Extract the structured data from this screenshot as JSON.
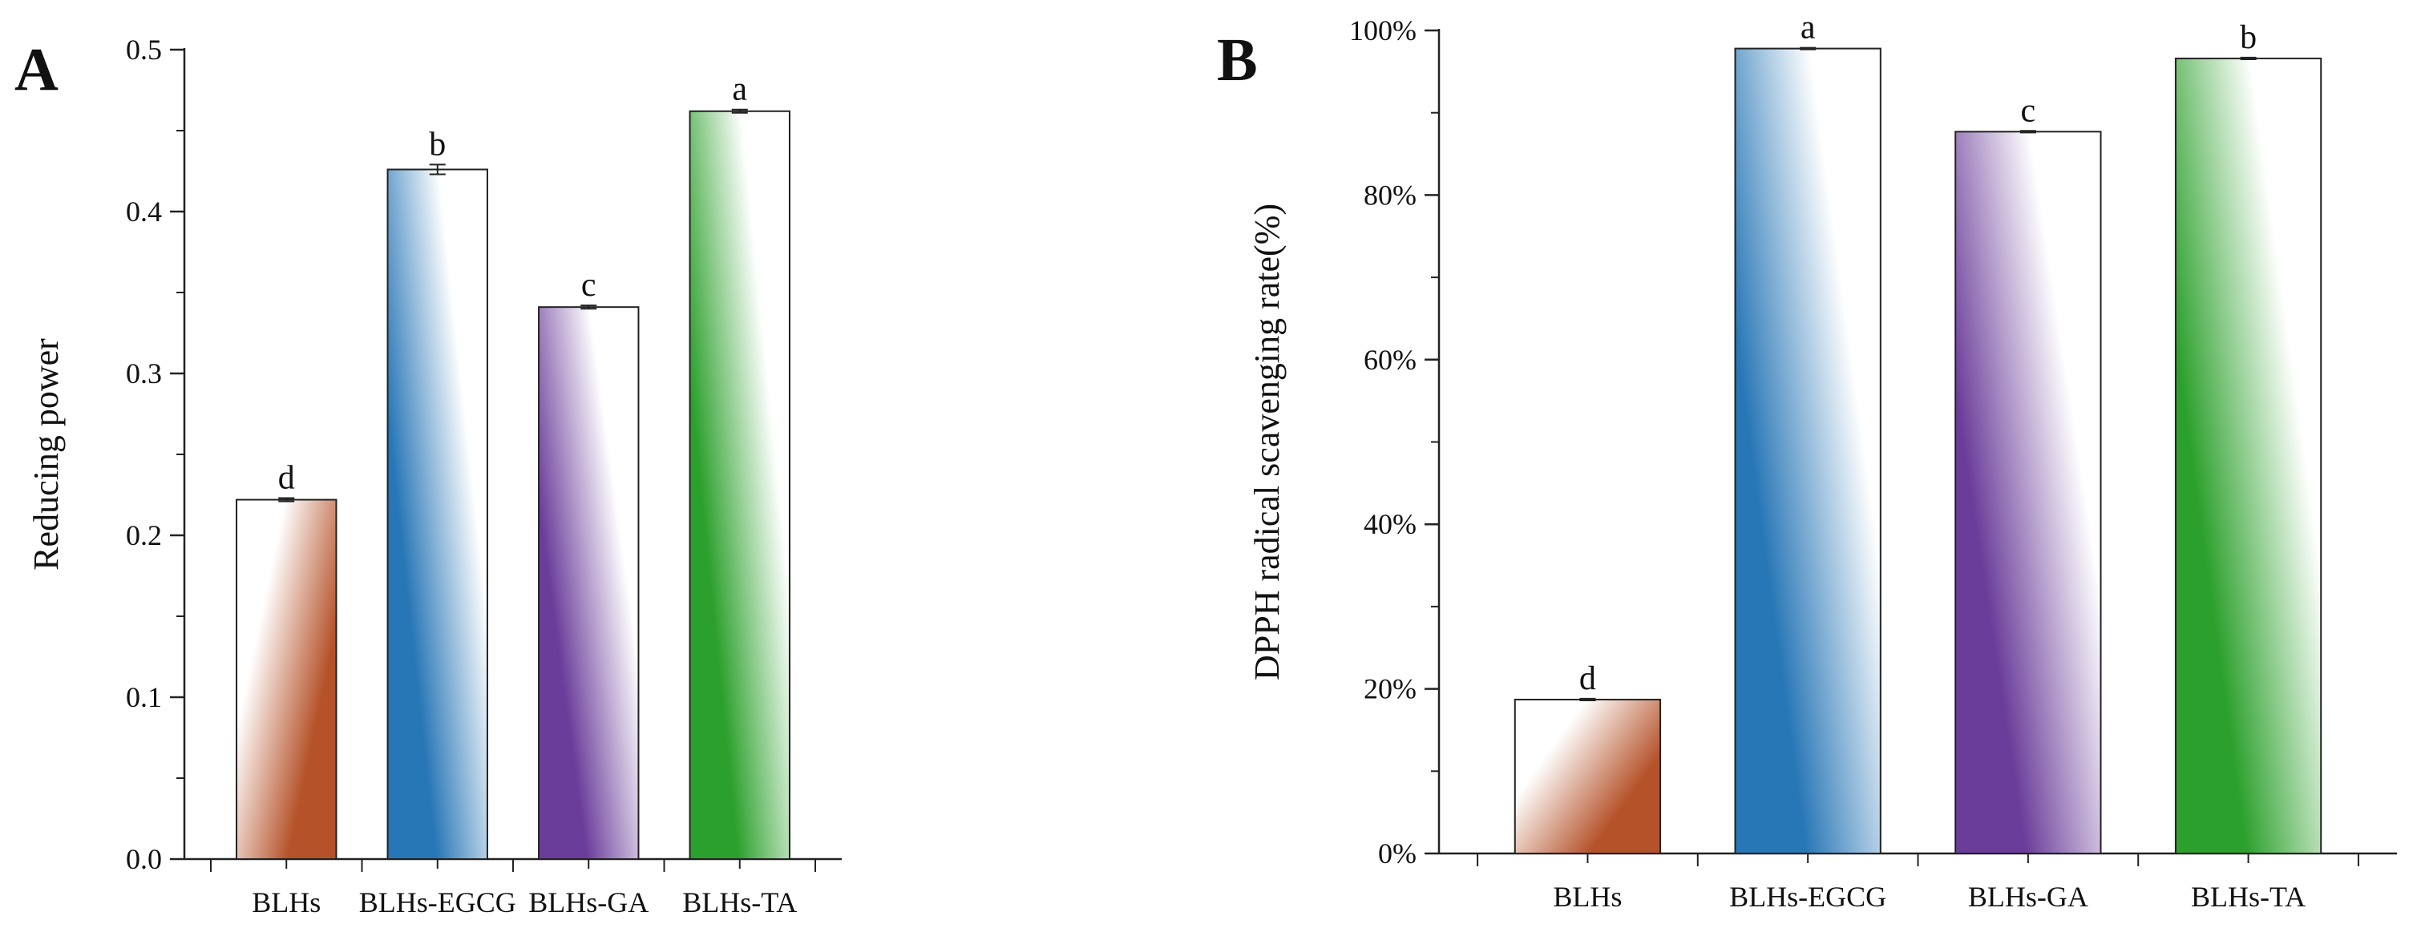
{
  "chart_data": [
    {
      "panel": "A",
      "type": "bar",
      "title": "",
      "xlabel": "",
      "ylabel": "Reducing power",
      "ylim": [
        0,
        0.5
      ],
      "yticks": [
        0.0,
        0.1,
        0.2,
        0.3,
        0.4,
        0.5
      ],
      "ytick_labels": [
        "0.0",
        "0.1",
        "0.2",
        "0.3",
        "0.4",
        "0.5"
      ],
      "categories": [
        "BLHs",
        "BLHs-EGCG",
        "BLHs-GA",
        "BLHs-TA"
      ],
      "values": [
        0.222,
        0.426,
        0.341,
        0.462
      ],
      "errors": [
        0.001,
        0.003,
        0.001,
        0.001
      ],
      "annotations": [
        "d",
        "b",
        "c",
        "a"
      ],
      "gradient_dir": [
        "tl-br",
        "tr-bl",
        "tr-bl",
        "tr-bl"
      ],
      "colors": [
        "#b5522a",
        "#2776b6",
        "#6b3d9a",
        "#2ca02c"
      ]
    },
    {
      "panel": "B",
      "type": "bar",
      "title": "",
      "xlabel": "",
      "ylabel": "DPPH radical scavenging rate(%)",
      "ylim": [
        0,
        100
      ],
      "yticks": [
        0,
        20,
        40,
        60,
        80,
        100
      ],
      "ytick_labels": [
        "0%",
        "20%",
        "40%",
        "60%",
        "80%",
        "100%"
      ],
      "categories": [
        "BLHs",
        "BLHs-EGCG",
        "BLHs-GA",
        "BLHs-TA"
      ],
      "values": [
        18.7,
        97.8,
        87.7,
        96.6
      ],
      "errors": [
        0.1,
        0.1,
        0.1,
        0.1
      ],
      "annotations": [
        "d",
        "a",
        "c",
        "b"
      ],
      "gradient_dir": [
        "tl-br",
        "tr-bl",
        "tr-bl",
        "tr-bl"
      ],
      "colors": [
        "#b5522a",
        "#2776b6",
        "#6b3d9a",
        "#2ca02c"
      ]
    }
  ]
}
